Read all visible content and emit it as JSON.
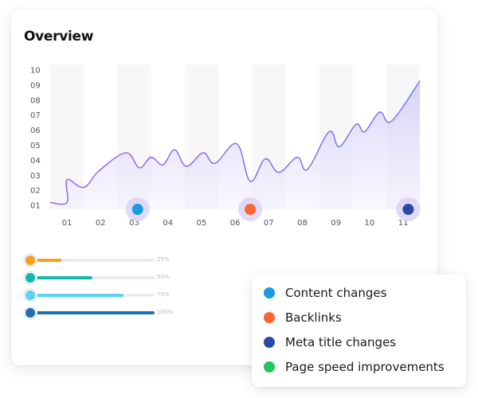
{
  "card": {
    "title": "Overview"
  },
  "chart_data": {
    "type": "area",
    "title": "Overview",
    "xlabel": "",
    "ylabel": "",
    "categories": [
      "01",
      "02",
      "03",
      "04",
      "05",
      "06",
      "07",
      "08",
      "09",
      "10",
      "11"
    ],
    "y_ticks": [
      "10",
      "09",
      "08",
      "07",
      "06",
      "05",
      "04",
      "03",
      "02",
      "01"
    ],
    "ylim": [
      0,
      10
    ],
    "grid": "alternating vertical column bands",
    "series": [
      {
        "name": "Overview",
        "color": "#7c5cf0",
        "values": [
          1.2,
          2.7,
          2.2,
          3.3,
          4.5,
          3.5,
          4.2,
          3.7,
          4.7,
          3.6,
          4.5,
          3.8,
          5.1,
          2.6,
          4.1,
          3.2,
          4.2,
          3.4,
          5.9,
          4.9,
          6.4,
          5.9,
          7.2,
          6.6,
          9.3
        ],
        "x_positions": [
          0.5,
          1.0,
          1.5,
          1.95,
          2.75,
          3.15,
          3.5,
          3.85,
          4.2,
          4.55,
          5.05,
          5.4,
          6.05,
          6.45,
          6.9,
          7.3,
          7.85,
          8.15,
          8.8,
          9.1,
          9.6,
          9.85,
          10.3,
          10.65,
          11.5
        ]
      }
    ],
    "markers": [
      {
        "x": 2.6,
        "legend": "Content changes",
        "color": "#1a9be0"
      },
      {
        "x": 5.95,
        "legend": "Backlinks",
        "color": "#ff6433"
      },
      {
        "x": 10.65,
        "legend": "Meta title changes",
        "color": "#2a4aa8"
      }
    ]
  },
  "sliders": [
    {
      "label": "25%",
      "value": 25,
      "color": "#f7a01c"
    },
    {
      "label": "50%",
      "value": 50,
      "color": "#14b8a6"
    },
    {
      "label": "75%",
      "value": 75,
      "color": "#5bd3f0"
    },
    {
      "label": "100%",
      "value": 100,
      "color": "#1f6fb0"
    }
  ],
  "legend": {
    "items": [
      {
        "label": "Content changes",
        "color": "#1a9be0"
      },
      {
        "label": "Backlinks",
        "color": "#ff6433"
      },
      {
        "label": "Meta title changes",
        "color": "#2a4aa8"
      },
      {
        "label": "Page speed improvements",
        "color": "#22c55e"
      }
    ]
  }
}
